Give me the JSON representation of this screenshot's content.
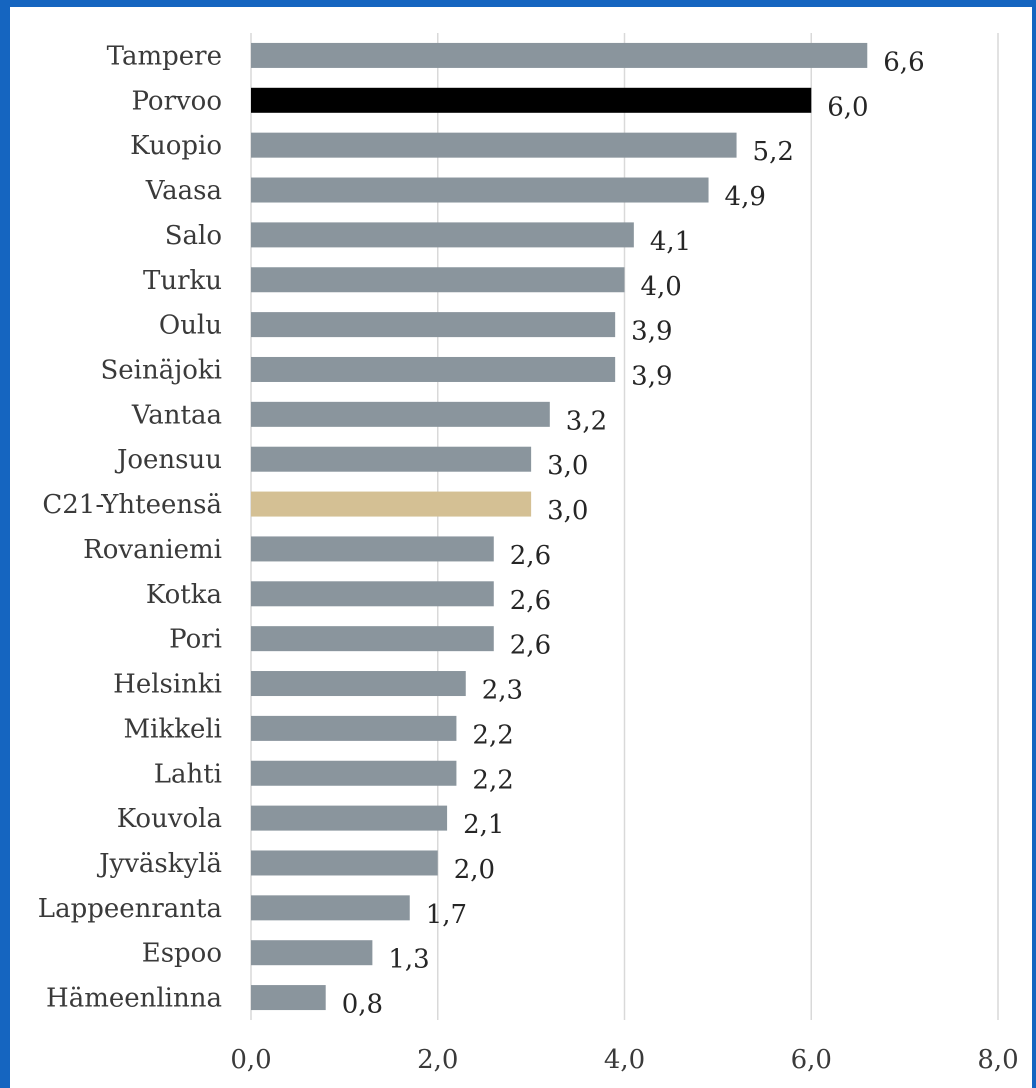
{
  "chart_data": {
    "type": "bar",
    "orientation": "horizontal",
    "title": "",
    "xlabel": "",
    "ylabel": "",
    "categories": [
      "Tampere",
      "Porvoo",
      "Kuopio",
      "Vaasa",
      "Salo",
      "Turku",
      "Oulu",
      "Seinäjoki",
      "Vantaa",
      "Joensuu",
      "C21-Yhteensä",
      "Rovaniemi",
      "Kotka",
      "Pori",
      "Helsinki",
      "Mikkeli",
      "Lahti",
      "Kouvola",
      "Jyväskylä",
      "Lappeenranta",
      "Espoo",
      "Hämeenlinna"
    ],
    "values": [
      6.6,
      6.0,
      5.2,
      4.9,
      4.1,
      4.0,
      3.9,
      3.9,
      3.2,
      3.0,
      3.0,
      2.6,
      2.6,
      2.6,
      2.3,
      2.2,
      2.2,
      2.1,
      2.0,
      1.7,
      1.3,
      0.8
    ],
    "value_labels": [
      "6,6",
      "6,0",
      "5,2",
      "4,9",
      "4,1",
      "4,0",
      "3,9",
      "3,9",
      "3,2",
      "3,0",
      "3,0",
      "2,6",
      "2,6",
      "2,6",
      "2,3",
      "2,2",
      "2,2",
      "2,1",
      "2,0",
      "1,7",
      "1,3",
      "0,8"
    ],
    "xlim": [
      0,
      8
    ],
    "x_ticks": [
      0,
      2,
      4,
      6,
      8
    ],
    "x_tick_labels": [
      "0,0",
      "2,0",
      "4,0",
      "6,0",
      "8,0"
    ],
    "grid": "vertical gridlines",
    "legend": "none",
    "colors": {
      "default_bar": "#8a959d",
      "highlight_bar": "#000000",
      "total_bar": "#d4c094",
      "grid": "#d9d9d9",
      "frame": "#1565c0"
    },
    "bar_colors": [
      "default",
      "highlight",
      "default",
      "default",
      "default",
      "default",
      "default",
      "default",
      "default",
      "default",
      "total",
      "default",
      "default",
      "default",
      "default",
      "default",
      "default",
      "default",
      "default",
      "default",
      "default",
      "default"
    ]
  }
}
